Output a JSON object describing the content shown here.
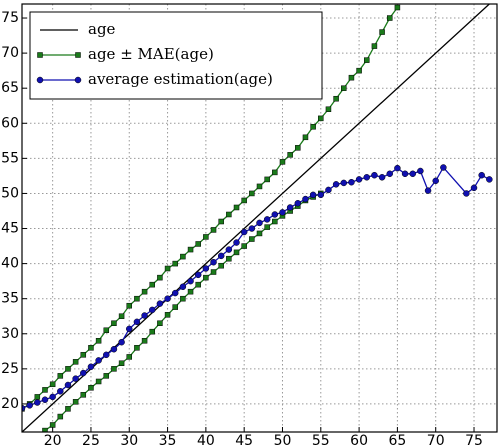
{
  "chart_data": {
    "type": "line",
    "xlim": [
      16,
      78
    ],
    "ylim": [
      16,
      77
    ],
    "xticks": [
      20,
      25,
      30,
      35,
      40,
      45,
      50,
      55,
      60,
      65,
      70,
      75
    ],
    "yticks": [
      20,
      25,
      30,
      35,
      40,
      45,
      50,
      55,
      60,
      65,
      70,
      75
    ],
    "grid": true,
    "legend": "upper left",
    "series": [
      {
        "name": "age",
        "color": "#000000",
        "marker": "none",
        "x": [
          16,
          77
        ],
        "values": [
          16,
          77
        ]
      },
      {
        "name": "age ± MAE(age)",
        "color": "#1a7a1a",
        "marker": "square",
        "x": [
          16,
          17,
          18,
          19,
          20,
          21,
          22,
          23,
          24,
          25,
          26,
          27,
          28,
          29,
          30,
          31,
          32,
          33,
          34,
          35,
          36,
          37,
          38,
          39,
          40,
          41,
          42,
          43,
          44,
          45,
          46,
          47,
          48,
          49,
          50,
          51,
          52,
          53,
          54,
          55,
          56,
          57,
          58,
          59,
          60,
          61,
          62,
          63,
          64,
          65
        ],
        "values": [
          19.3,
          20,
          21,
          22,
          22.8,
          24,
          25,
          26,
          27,
          28,
          29,
          30.5,
          31.5,
          32.5,
          34,
          35,
          36,
          37,
          38,
          39.3,
          40,
          41,
          42,
          42.8,
          43.8,
          44.8,
          46,
          47,
          48,
          49,
          50,
          51,
          52,
          53,
          54.5,
          55.5,
          56.5,
          58,
          59.5,
          60.7,
          62,
          63.5,
          65,
          66.5,
          67.5,
          69,
          71,
          73,
          75,
          76.5
        ]
      },
      {
        "name": "age ± MAE(age)",
        "color": "#1a7a1a",
        "marker": "square",
        "legend_skip": true,
        "x": [
          19,
          20,
          21,
          22,
          23,
          24,
          25,
          26,
          27,
          28,
          29,
          30,
          31,
          32,
          33,
          34,
          35,
          36,
          37,
          38,
          39,
          40,
          41,
          42,
          43,
          44,
          45,
          46,
          47,
          48,
          49,
          50,
          51,
          52,
          53,
          54,
          55
        ],
        "values": [
          16.2,
          17,
          18.2,
          19.3,
          20.3,
          21.3,
          22.3,
          23.2,
          24,
          25,
          25.8,
          26.7,
          28,
          29,
          30.3,
          31.5,
          32.7,
          33.8,
          35,
          36,
          37,
          38,
          38.8,
          39.7,
          40.7,
          41.6,
          42.5,
          43.5,
          44.3,
          45.2,
          46,
          46.8,
          47.5,
          48.2,
          49,
          49.5,
          50
        ]
      },
      {
        "name": "average estimation(age)",
        "color": "#1010b0",
        "marker": "circle",
        "x": [
          16,
          17,
          18,
          19,
          20,
          21,
          22,
          23,
          24,
          25,
          26,
          27,
          28,
          29,
          30,
          31,
          32,
          33,
          34,
          35,
          36,
          37,
          38,
          39,
          40,
          41,
          42,
          43,
          44,
          45,
          46,
          47,
          48,
          49,
          50,
          51,
          52,
          53,
          54,
          55,
          56,
          57,
          58,
          59,
          60,
          61,
          62,
          63,
          64,
          65,
          66,
          67,
          68,
          69,
          70,
          71,
          74,
          75,
          76,
          77
        ],
        "values": [
          19.4,
          19.8,
          20.2,
          20.6,
          21,
          21.8,
          22.7,
          23.6,
          24.4,
          25.3,
          26.2,
          27,
          27.8,
          28.8,
          30.7,
          31.7,
          32.6,
          33.4,
          34.3,
          35,
          35.8,
          36.7,
          37.5,
          38.4,
          39.3,
          40.2,
          41.1,
          42,
          43,
          44.5,
          45,
          45.8,
          46.3,
          47,
          47.3,
          48,
          48.6,
          49.2,
          49.8,
          49.8,
          50.5,
          51.3,
          51.5,
          51.6,
          52,
          52.3,
          52.6,
          52.3,
          52.8,
          53.6,
          52.8,
          52.8,
          53.2,
          50.4,
          51.8,
          53.7,
          50,
          50.8,
          52.6,
          52
        ]
      }
    ]
  }
}
